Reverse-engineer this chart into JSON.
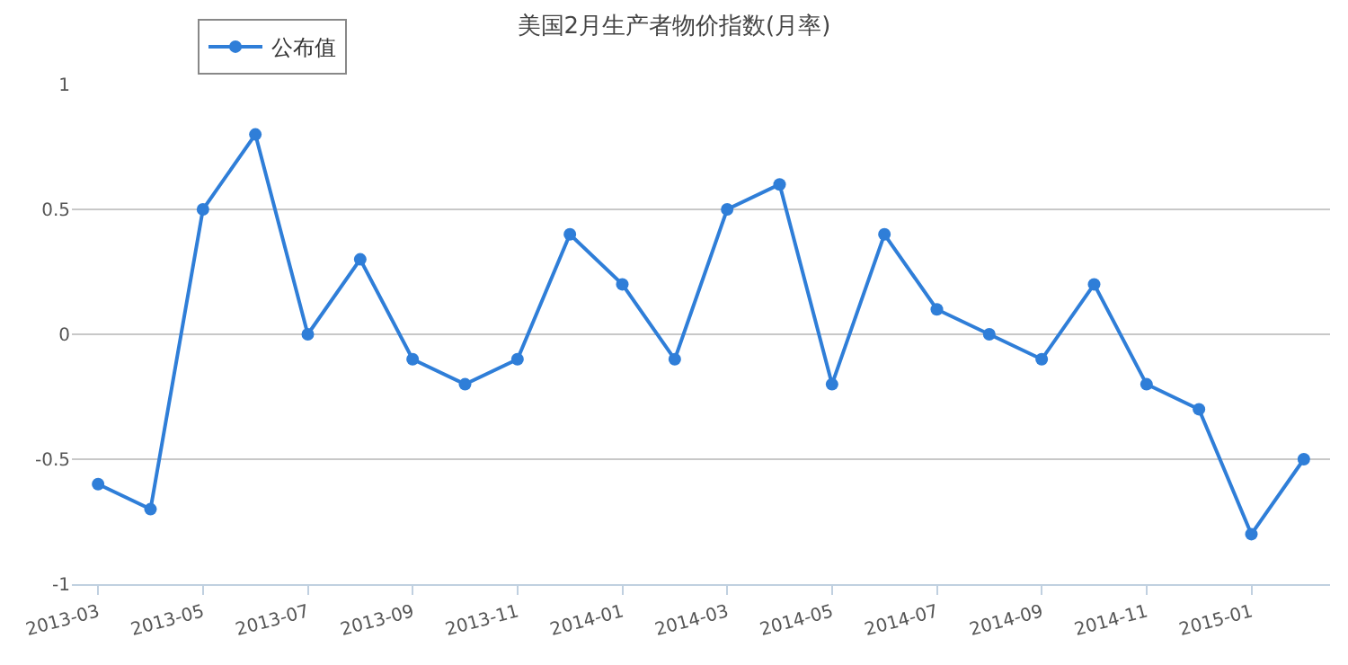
{
  "chart_data": {
    "type": "line",
    "title": "美国2月生产者物价指数(月率)",
    "categories": [
      "2013-03",
      null,
      "2013-05",
      null,
      "2013-07",
      null,
      "2013-09",
      null,
      "2013-11",
      null,
      "2014-01",
      null,
      "2014-03",
      null,
      "2014-05",
      null,
      "2014-07",
      null,
      "2014-09",
      null,
      "2014-11",
      null,
      "2015-01",
      null
    ],
    "series": [
      {
        "name": "公布值",
        "color": "#2f7ed8",
        "values": [
          -0.6,
          -0.7,
          0.5,
          0.8,
          0,
          0.3,
          -0.1,
          -0.2,
          -0.1,
          0.4,
          0.2,
          -0.1,
          0.5,
          0.6,
          -0.2,
          0.4,
          0.1,
          0,
          -0.1,
          0.2,
          -0.2,
          -0.3,
          -0.8,
          -0.5
        ]
      }
    ],
    "ylim": [
      -1,
      1
    ],
    "yticks": [
      -1,
      -0.5,
      0,
      0.5,
      1
    ],
    "grid": "y",
    "legend": "top left",
    "marker": "circle",
    "line_style": "solid"
  }
}
